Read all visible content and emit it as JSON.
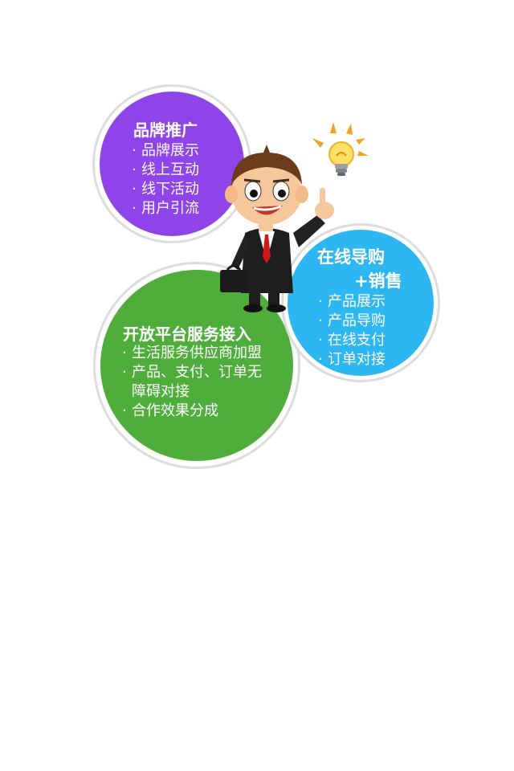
{
  "brand_circle": {
    "title": "品牌推广",
    "items": [
      "品牌展示",
      "线上互动",
      "线下活动",
      "用户引流"
    ],
    "color": "#8e44e8"
  },
  "shopping_circle": {
    "title_line1": "在线导购",
    "title_line2": "+销售",
    "items": [
      "产品展示",
      "产品导购",
      "在线支付",
      "订单对接"
    ],
    "color": "#2cb6f2"
  },
  "platform_circle": {
    "title": "开放平台服务接入",
    "items": [
      "生活服务供应商加盟",
      "产品、支付、订单无",
      "障碍对接",
      "合作效果分成"
    ],
    "color": "#4fae3b"
  },
  "illustration": {
    "character_icon": "businessman-pointing-icon",
    "bulb_icon": "lightbulb-idea-icon"
  }
}
